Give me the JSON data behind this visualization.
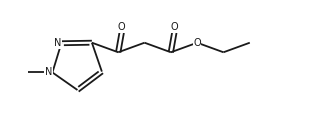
{
  "bg_color": "#ffffff",
  "line_color": "#1a1a1a",
  "line_width": 1.3,
  "text_color": "#1a1a1a",
  "font_size": 7.0,
  "figsize": [
    3.18,
    1.22
  ],
  "dpi": 100,
  "xlim": [
    0,
    318
  ],
  "ylim": [
    0,
    122
  ]
}
